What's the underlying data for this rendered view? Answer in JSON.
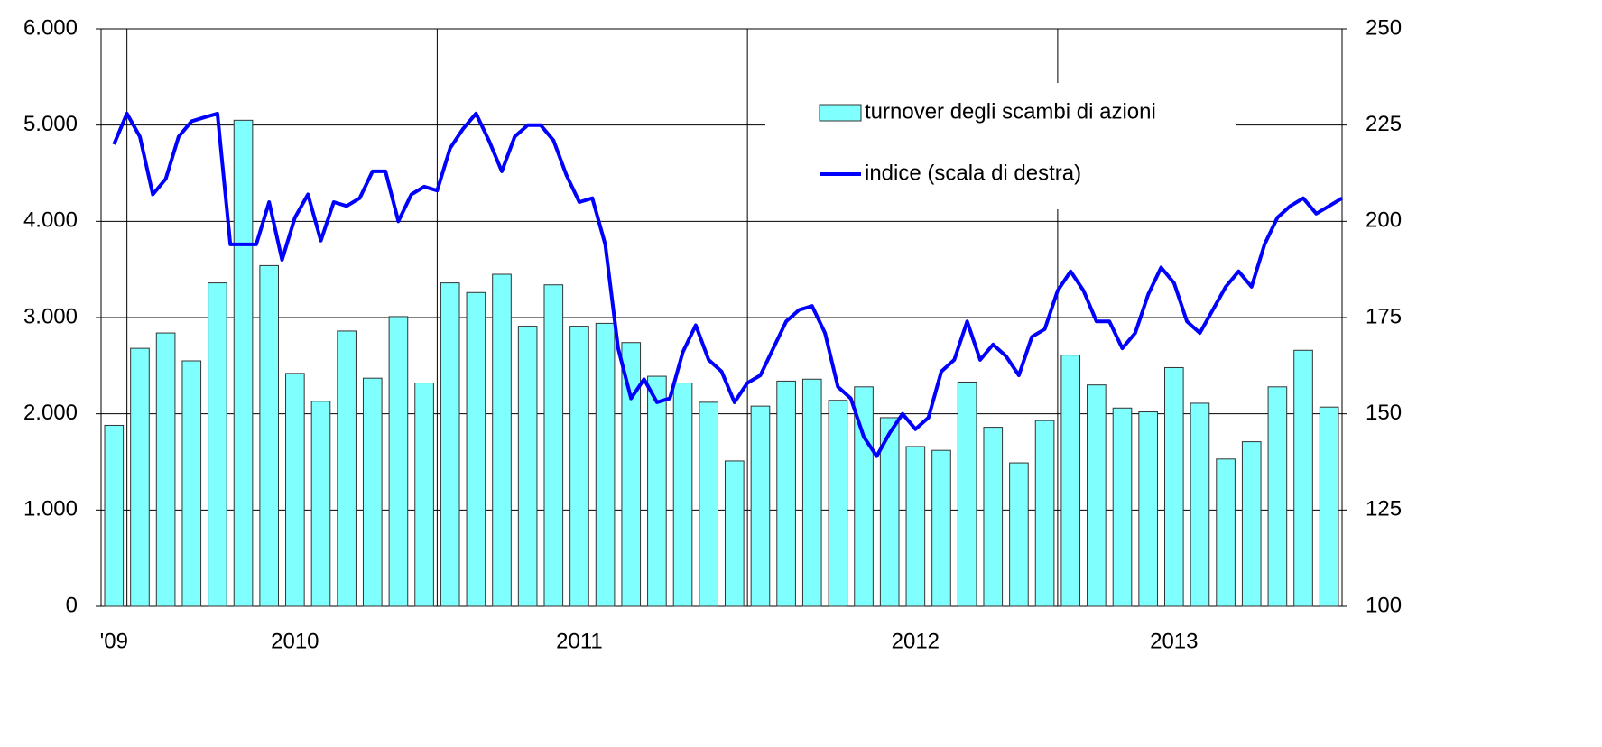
{
  "chart_data": {
    "type": "bar-line",
    "categories": [
      "'09",
      null,
      null,
      null,
      null,
      null,
      null,
      "2010",
      null,
      null,
      null,
      null,
      null,
      null,
      null,
      null,
      null,
      null,
      "2011",
      null,
      null,
      null,
      null,
      null,
      null,
      null,
      null,
      null,
      null,
      null,
      null,
      "2012",
      null,
      null,
      null,
      null,
      null,
      null,
      null,
      null,
      null,
      "2013",
      null,
      null,
      null,
      null,
      null,
      null
    ],
    "series": [
      {
        "name": "turnover degli scambi di azioni",
        "color": "#80ffff",
        "type": "bar",
        "values": [
          1880,
          2680,
          2840,
          2550,
          3360,
          5050,
          3540,
          2420,
          2130,
          2860,
          2370,
          3010,
          2320,
          3360,
          3260,
          3450,
          2910,
          3340,
          2910,
          2940,
          2740,
          2390,
          2320,
          2120,
          1510,
          2080,
          2340,
          2360,
          2140,
          2280,
          1960,
          1660,
          1620,
          2330,
          1860,
          1490,
          1930,
          2610,
          2300,
          2060,
          2020,
          2480,
          2110,
          1530,
          1710,
          2280,
          2660,
          2070
        ]
      },
      {
        "name": "indice (scala di destra)",
        "color": "#0000ff",
        "type": "line",
        "axis": "y2",
        "x": [
          0,
          0.5,
          1,
          1.5,
          2,
          2.5,
          3,
          3.5,
          4,
          4.5,
          5,
          5.5,
          6,
          6.5,
          7,
          7.5,
          8,
          8.5,
          9,
          9.5,
          10,
          10.5,
          11,
          11.5,
          12,
          12.5,
          13,
          13.5,
          14,
          14.5,
          15,
          15.5,
          16,
          16.5,
          17,
          17.5,
          18,
          18.5,
          19,
          19.5,
          20,
          20.5,
          21,
          21.5,
          22,
          22.5,
          23,
          23.5,
          24,
          24.5,
          25,
          25.5,
          26,
          26.5,
          27,
          27.5,
          28,
          28.5,
          29,
          29.5,
          30,
          30.5,
          31,
          31.5,
          32,
          32.5,
          33,
          33.5,
          34,
          34.5,
          35,
          35.5,
          36,
          36.5,
          37,
          37.5,
          38,
          38.5,
          39,
          39.5,
          40,
          40.5,
          41,
          41.5,
          42,
          42.5,
          43,
          43.5,
          44,
          44.5,
          45,
          45.5,
          46,
          46.5,
          47,
          47.5
        ],
        "values": [
          220,
          228,
          222,
          207,
          211,
          222,
          226,
          227,
          228,
          194,
          194,
          194,
          205,
          190,
          201,
          207,
          195,
          205,
          204,
          206,
          213,
          213,
          200,
          207,
          209,
          208,
          219,
          224,
          228,
          221,
          213,
          222,
          225,
          225,
          221,
          212,
          205,
          206,
          194,
          167,
          154,
          159,
          153,
          154,
          166,
          173,
          164,
          161,
          153,
          158,
          160,
          167,
          174,
          177,
          178,
          171,
          157,
          154,
          144,
          139,
          145,
          150,
          146,
          149,
          161,
          164,
          174,
          164,
          168,
          165,
          160,
          170,
          172,
          182,
          187,
          182,
          174,
          174,
          167,
          171,
          181,
          188,
          184,
          174,
          171,
          177,
          183,
          187,
          183,
          194,
          201,
          204,
          206,
          202,
          204,
          206
        ]
      }
    ],
    "ylim": [
      0,
      6000
    ],
    "yticks": [
      {
        "value": 0,
        "label": "0"
      },
      {
        "value": 1000,
        "label": "1.000"
      },
      {
        "value": 2000,
        "label": "2.000"
      },
      {
        "value": 3000,
        "label": "3.000"
      },
      {
        "value": 4000,
        "label": "4.000"
      },
      {
        "value": 5000,
        "label": "5.000"
      },
      {
        "value": 6000,
        "label": "6.000"
      }
    ],
    "y2lim": [
      100,
      250
    ],
    "y2ticks": [
      100,
      125,
      150,
      175,
      200,
      225,
      250
    ],
    "grid": true,
    "legend": "upper-right"
  }
}
